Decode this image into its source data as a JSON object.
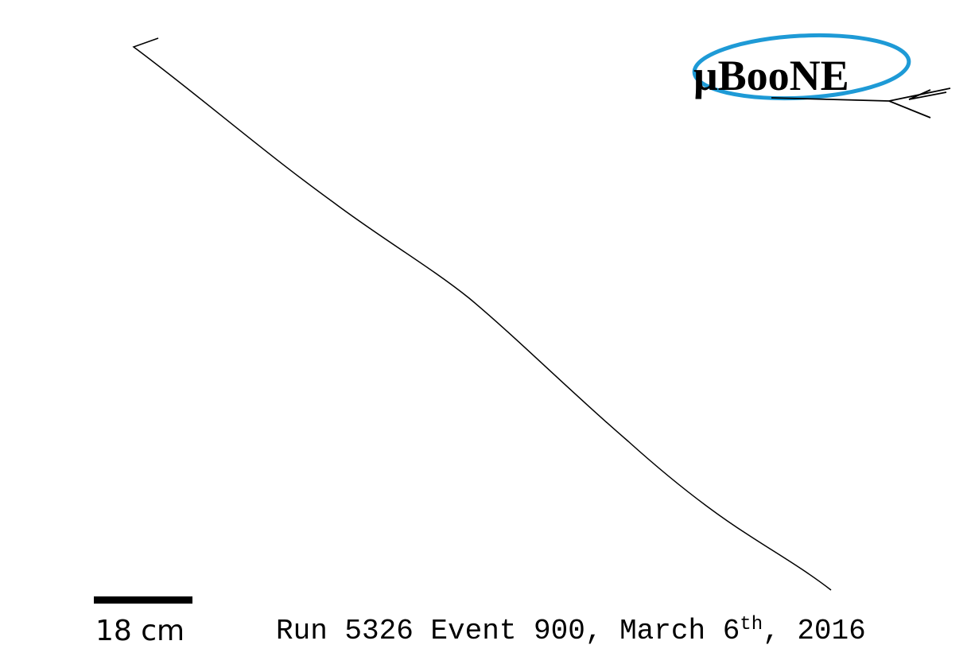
{
  "logo": {
    "text": "μBooNE",
    "ring_color": "#1e9ad6",
    "text_color": "#000000"
  },
  "scale": {
    "label": "18 cm"
  },
  "event": {
    "prefix": "Run 5326 Event 900, March 6",
    "ordinal_suffix": "th",
    "suffix": ", 2016"
  },
  "colors": {
    "background": "#ffffff",
    "track": "#000000"
  }
}
